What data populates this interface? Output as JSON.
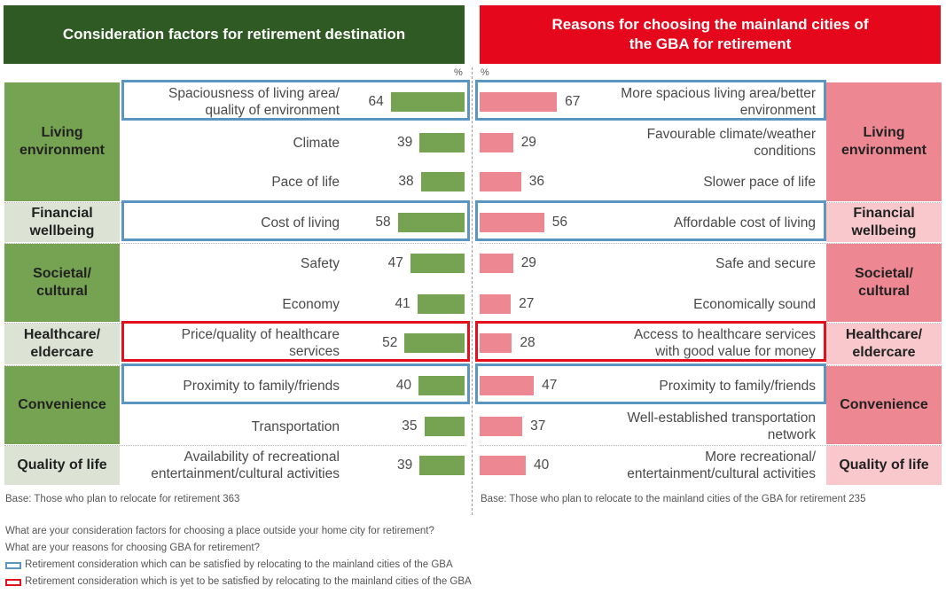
{
  "left_title": "Consideration factors for retirement destination",
  "right_title": "Reasons for choosing the mainland cities of\nthe GBA for retirement",
  "unit_symbol": "%",
  "colors": {
    "left_header": "#2f5a23",
    "right_header": "#e5081c",
    "left_bar": "#76a351",
    "right_bar": "#ed8792",
    "left_cat_dark": "#76a351",
    "left_cat_light": "#dce3d5",
    "right_cat_dark": "#ed8792",
    "right_cat_light": "#f8c8cc",
    "satisfied_outline": "#5b96c0",
    "unsatisfied_outline": "#e3101d"
  },
  "categories": [
    {
      "left": "Living\nenvironment",
      "right": "Living\nenvironment",
      "shade": "dark"
    },
    {
      "left": "Financial\nwellbeing",
      "right": "Financial\nwellbeing",
      "shade": "light"
    },
    {
      "left": "Societal/\ncultural",
      "right": "Societal/\ncultural",
      "shade": "dark"
    },
    {
      "left": "Healthcare/\neldercare",
      "right": "Healthcare/\neldercare",
      "shade": "light"
    },
    {
      "left": "Convenience",
      "right": "Convenience",
      "shade": "dark"
    },
    {
      "left": "Quality of life",
      "right": "Quality of life",
      "shade": "light"
    }
  ],
  "chart_data": {
    "type": "bar",
    "orientation": "horizontal",
    "unit": "%",
    "rows": [
      {
        "category": 0,
        "left_label": "Spaciousness of living area/\nquality of environment",
        "left_value": 64,
        "right_label": "More spacious living area/better\nenvironment",
        "right_value": 67,
        "highlight": "satisfied"
      },
      {
        "category": 0,
        "left_label": "Climate",
        "left_value": 39,
        "right_label": "Favourable climate/weather\nconditions",
        "right_value": 29,
        "highlight": "none"
      },
      {
        "category": 0,
        "left_label": "Pace of life",
        "left_value": 38,
        "right_label": "Slower pace of life",
        "right_value": 36,
        "highlight": "none"
      },
      {
        "category": 1,
        "left_label": "Cost of living",
        "left_value": 58,
        "right_label": "Affordable cost of living",
        "right_value": 56,
        "highlight": "satisfied"
      },
      {
        "category": 2,
        "left_label": "Safety",
        "left_value": 47,
        "right_label": "Safe and secure",
        "right_value": 29,
        "highlight": "none"
      },
      {
        "category": 2,
        "left_label": "Economy",
        "left_value": 41,
        "right_label": "Economically sound",
        "right_value": 27,
        "highlight": "none"
      },
      {
        "category": 3,
        "left_label": "Price/quality of healthcare\nservices",
        "left_value": 52,
        "right_label": "Access to healthcare services\nwith good value for money",
        "right_value": 28,
        "highlight": "unsatisfied"
      },
      {
        "category": 4,
        "left_label": "Proximity to family/friends",
        "left_value": 40,
        "right_label": "Proximity to family/friends",
        "right_value": 47,
        "highlight": "satisfied"
      },
      {
        "category": 4,
        "left_label": "Transportation",
        "left_value": 35,
        "right_label": "Well-established transportation\nnetwork",
        "right_value": 37,
        "highlight": "none"
      },
      {
        "category": 5,
        "left_label": "Availability of recreational\nentertainment/cultural activities",
        "left_value": 39,
        "right_label": "More recreational/\nentertainment/cultural activities",
        "right_value": 40,
        "highlight": "none"
      }
    ]
  },
  "left_base": "Base: Those who plan to relocate for retirement 363",
  "right_base": "Base: Those who plan to relocate to the mainland cities of the GBA for retirement  235",
  "question_1": "What are your consideration factors for choosing a place outside your home city for retirement?",
  "question_2": "What are your reasons for choosing GBA for retirement?",
  "legend_satisfied": "Retirement consideration which can be satisfied by relocating to the mainland cities of the GBA",
  "legend_unsatisfied": "Retirement consideration which is yet to be satisfied by relocating to the mainland cities of the GBA"
}
